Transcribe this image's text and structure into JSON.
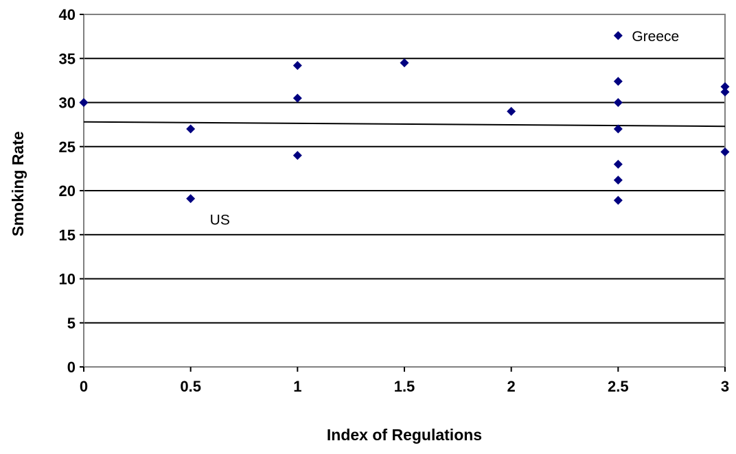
{
  "chart_data": {
    "type": "scatter",
    "title": "",
    "xlabel": "Index of Regulations",
    "ylabel": "Smoking Rate",
    "xlim": [
      0,
      3
    ],
    "ylim": [
      0,
      40
    ],
    "xticks": [
      "0",
      "0.5",
      "1",
      "1.5",
      "2",
      "2.5",
      "3"
    ],
    "yticks": [
      "0",
      "5",
      "10",
      "15",
      "20",
      "25",
      "30",
      "35",
      "40"
    ],
    "grid": "horizontal",
    "legend": "none",
    "marker_color": "#000080",
    "trendline_color": "#000000",
    "points": [
      {
        "x": 0,
        "y": 30
      },
      {
        "x": 0.5,
        "y": 27
      },
      {
        "x": 0.5,
        "y": 19.1
      },
      {
        "x": 1,
        "y": 34.2
      },
      {
        "x": 1,
        "y": 30.5
      },
      {
        "x": 1,
        "y": 24
      },
      {
        "x": 1.5,
        "y": 34.5
      },
      {
        "x": 2,
        "y": 29
      },
      {
        "x": 2.5,
        "y": 37.6
      },
      {
        "x": 2.5,
        "y": 32.4
      },
      {
        "x": 2.5,
        "y": 30
      },
      {
        "x": 2.5,
        "y": 27
      },
      {
        "x": 2.5,
        "y": 23
      },
      {
        "x": 2.5,
        "y": 21.2
      },
      {
        "x": 2.5,
        "y": 18.9
      },
      {
        "x": 3,
        "y": 31.8
      },
      {
        "x": 3,
        "y": 31.2
      },
      {
        "x": 3,
        "y": 24.4
      }
    ],
    "trendline": {
      "x": [
        0,
        3
      ],
      "y": [
        27.8,
        27.3
      ]
    },
    "annotations": [
      {
        "text": "Greece",
        "x": 2.5,
        "y": 37.6
      },
      {
        "text": "US",
        "x": 0.5,
        "y": 19.1
      }
    ]
  }
}
